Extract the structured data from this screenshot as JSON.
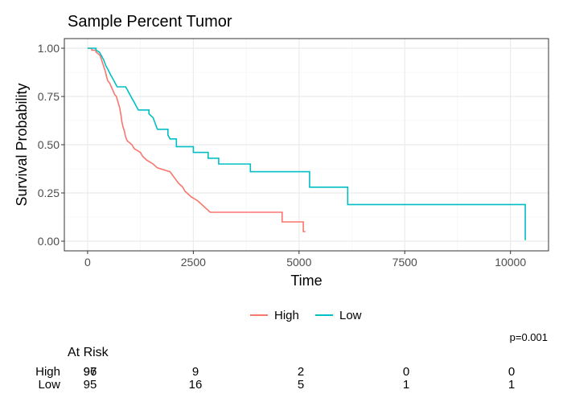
{
  "title": "Sample Percent Tumor",
  "pvalue": "p=0.001",
  "colors": {
    "High": "#F8766D",
    "Low": "#00BFC4",
    "grid_major": "#EBEBEB",
    "grid_minor": "#F2F2F2",
    "panel_border": "#333333"
  },
  "chart_data": {
    "type": "line",
    "subtype": "kaplan-meier step",
    "title": "Sample Percent Tumor",
    "xlabel": "Time",
    "ylabel": "Survival Probability",
    "xlim": [
      -550,
      10900
    ],
    "ylim": [
      -0.05,
      1.05
    ],
    "xticks": [
      0,
      2500,
      5000,
      7500,
      10000
    ],
    "xtick_labels": [
      "0",
      "2500",
      "5000",
      "7500",
      "10000"
    ],
    "yticks": [
      0,
      0.25,
      0.5,
      0.75,
      1
    ],
    "ytick_labels": [
      "0.00",
      "0.25",
      "0.50",
      "0.75",
      "1.00"
    ],
    "grid": true,
    "legend_position": "bottom",
    "series": [
      {
        "name": "High",
        "color": "#F8766D",
        "points": [
          [
            0,
            1
          ],
          [
            100,
            1
          ],
          [
            100,
            0.99
          ],
          [
            200,
            0.99
          ],
          [
            200,
            0.98
          ],
          [
            260,
            0.97
          ],
          [
            300,
            0.96
          ],
          [
            330,
            0.94
          ],
          [
            360,
            0.92
          ],
          [
            390,
            0.9
          ],
          [
            420,
            0.88
          ],
          [
            450,
            0.85
          ],
          [
            480,
            0.83
          ],
          [
            520,
            0.82
          ],
          [
            560,
            0.8
          ],
          [
            600,
            0.78
          ],
          [
            640,
            0.76
          ],
          [
            680,
            0.75
          ],
          [
            720,
            0.72
          ],
          [
            760,
            0.69
          ],
          [
            790,
            0.65
          ],
          [
            810,
            0.62
          ],
          [
            840,
            0.59
          ],
          [
            870,
            0.57
          ],
          [
            900,
            0.54
          ],
          [
            940,
            0.52
          ],
          [
            1050,
            0.5
          ],
          [
            1100,
            0.48
          ],
          [
            1250,
            0.46
          ],
          [
            1300,
            0.44
          ],
          [
            1400,
            0.42
          ],
          [
            1550,
            0.4
          ],
          [
            1650,
            0.38
          ],
          [
            1950,
            0.36
          ],
          [
            2050,
            0.33
          ],
          [
            2150,
            0.3
          ],
          [
            2250,
            0.28
          ],
          [
            2300,
            0.26
          ],
          [
            2450,
            0.23
          ],
          [
            2600,
            0.21
          ],
          [
            2700,
            0.19
          ],
          [
            2800,
            0.17
          ],
          [
            2900,
            0.15
          ],
          [
            4600,
            0.15
          ],
          [
            4600,
            0.1
          ],
          [
            5100,
            0.1
          ],
          [
            5100,
            0.05
          ],
          [
            5150,
            0.05
          ]
        ]
      },
      {
        "name": "Low",
        "color": "#00BFC4",
        "points": [
          [
            0,
            1
          ],
          [
            200,
            1
          ],
          [
            200,
            0.99
          ],
          [
            280,
            0.98
          ],
          [
            330,
            0.96
          ],
          [
            380,
            0.94
          ],
          [
            430,
            0.91
          ],
          [
            480,
            0.89
          ],
          [
            550,
            0.86
          ],
          [
            600,
            0.84
          ],
          [
            650,
            0.82
          ],
          [
            700,
            0.8
          ],
          [
            900,
            0.8
          ],
          [
            950,
            0.78
          ],
          [
            1000,
            0.76
          ],
          [
            1050,
            0.74
          ],
          [
            1100,
            0.72
          ],
          [
            1150,
            0.7
          ],
          [
            1200,
            0.68
          ],
          [
            1450,
            0.68
          ],
          [
            1450,
            0.66
          ],
          [
            1550,
            0.64
          ],
          [
            1600,
            0.61
          ],
          [
            1650,
            0.58
          ],
          [
            1900,
            0.58
          ],
          [
            1900,
            0.55
          ],
          [
            1950,
            0.53
          ],
          [
            2100,
            0.53
          ],
          [
            2100,
            0.49
          ],
          [
            2500,
            0.49
          ],
          [
            2500,
            0.46
          ],
          [
            2850,
            0.46
          ],
          [
            2850,
            0.43
          ],
          [
            3100,
            0.43
          ],
          [
            3100,
            0.4
          ],
          [
            3850,
            0.4
          ],
          [
            3850,
            0.36
          ],
          [
            5250,
            0.36
          ],
          [
            5250,
            0.28
          ],
          [
            6150,
            0.28
          ],
          [
            6150,
            0.19
          ],
          [
            10350,
            0.19
          ],
          [
            10350,
            0.005
          ]
        ]
      }
    ]
  },
  "legend": {
    "items": [
      {
        "label": "High"
      },
      {
        "label": "Low"
      }
    ]
  },
  "risk_table": {
    "title": "At Risk",
    "times": [
      0,
      2500,
      5000,
      7500,
      10000
    ],
    "rows": [
      {
        "label": "High",
        "values": [
          "97",
          "9",
          "2",
          "0",
          "0"
        ]
      },
      {
        "label": "Low",
        "values": [
          "95",
          "16",
          "5",
          "1",
          "1"
        ]
      }
    ],
    "overprint": "96"
  }
}
